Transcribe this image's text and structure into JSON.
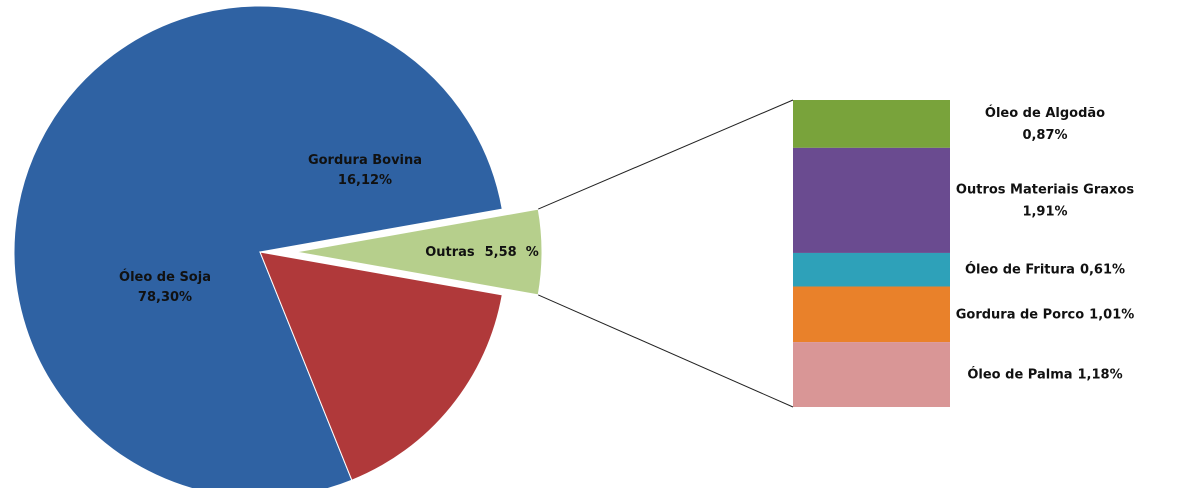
{
  "chart_data": [
    {
      "type": "pie",
      "categories": [
        "Óleo de Soja",
        "Gordura Bovina",
        "Outras"
      ],
      "values": [
        78.3,
        16.12,
        5.58
      ],
      "value_labels": [
        "78,30%",
        "16,12%",
        "5,58  %"
      ],
      "colors": [
        "#2f62a3",
        "#b0393a",
        "#b6cf8c"
      ]
    },
    {
      "type": "bar",
      "stacked": true,
      "categories": [
        "Óleo de Algodão",
        "Outros Materiais Graxos",
        "Óleo de Fritura",
        "Gordura de Porco",
        "Óleo de Palma"
      ],
      "values": [
        0.87,
        1.91,
        0.61,
        1.01,
        1.18
      ],
      "value_labels": [
        "0,87%",
        "1,91%",
        "0,61%",
        "1,01%",
        "1,18%"
      ],
      "colors": [
        "#79a33b",
        "#6a4b90",
        "#2ea1b9",
        "#e9812a",
        "#d99696"
      ]
    }
  ]
}
